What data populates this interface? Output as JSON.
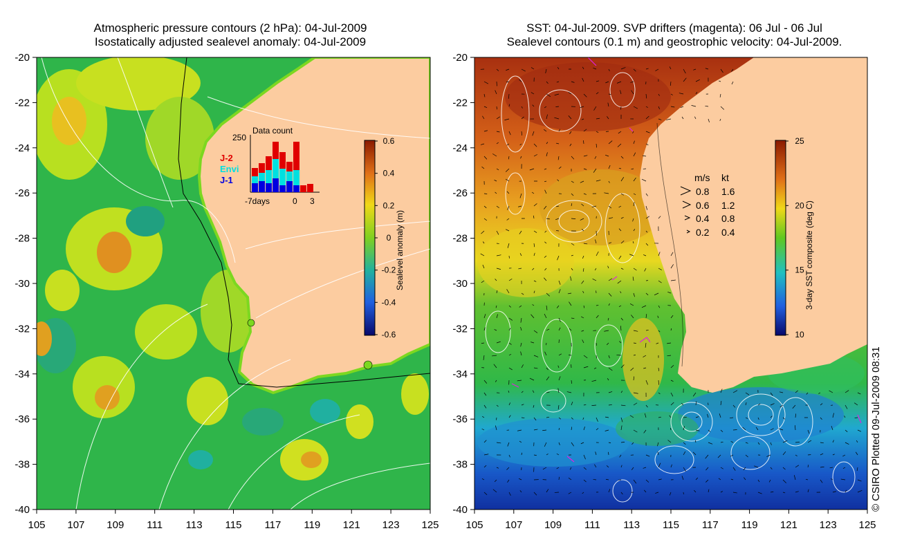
{
  "left_panel": {
    "title_line1": "Atmospheric pressure contours (2 hPa): 04-Jul-2009",
    "title_line2": "Isostatically adjusted sealevel anomaly: 04-Jul-2009",
    "x_ticks": [
      "105",
      "107",
      "109",
      "111",
      "113",
      "115",
      "117",
      "119",
      "121",
      "123",
      "125"
    ],
    "y_ticks": [
      "-20",
      "-22",
      "-24",
      "-26",
      "-28",
      "-30",
      "-32",
      "-34",
      "-36",
      "-38",
      "-40"
    ],
    "colorbar": {
      "label": "Sealevel anomaly (m)",
      "ticks": [
        "0.6",
        "0.4",
        "0.2",
        "0",
        "-0.2",
        "-0.4",
        "-0.6"
      ]
    },
    "inset": {
      "title": "Data count",
      "ymax_label": "250",
      "x_labels": [
        "-7days",
        "0",
        "3"
      ],
      "legend": [
        {
          "label": "J-2",
          "color": "#e00000"
        },
        {
          "label": "Envi",
          "color": "#00e0e0"
        },
        {
          "label": "J-1",
          "color": "#0000e0"
        }
      ]
    }
  },
  "right_panel": {
    "title_line1": "SST: 04-Jul-2009. SVP drifters (magenta): 06 Jul - 06 Jul",
    "title_line2": "Sealevel contours (0.1 m) and geostrophic velocity: 04-Jul-2009.",
    "x_ticks": [
      "105",
      "107",
      "109",
      "111",
      "113",
      "115",
      "117",
      "119",
      "121",
      "123",
      "125"
    ],
    "y_ticks": [
      "-20",
      "-22",
      "-24",
      "-26",
      "-28",
      "-30",
      "-32",
      "-34",
      "-36",
      "-38",
      "-40"
    ],
    "colorbar": {
      "label": "3-day SST composite (deg C)",
      "ticks": [
        "25",
        "20",
        "15",
        "10"
      ]
    },
    "velocity_legend": {
      "header_ms": "m/s",
      "header_kt": "kt",
      "rows": [
        {
          "ms": "0.8",
          "kt": "1.6"
        },
        {
          "ms": "0.6",
          "kt": "1.2"
        },
        {
          "ms": "0.4",
          "kt": "0.8"
        },
        {
          "ms": "0.2",
          "kt": "0.4"
        }
      ]
    }
  },
  "copyright": "© CSIRO Plotted 09-Jul-2009 08:31",
  "colors": {
    "land": "#fccca0",
    "sla_high": "#d08020",
    "sla_mid": "#b8e020",
    "sla_low": "#30b050",
    "sst_warm": "#b83c10",
    "sst_mid": "#e0d020",
    "sst_green": "#30b040",
    "sst_cool": "#20a0e0",
    "sst_cold": "#1040b0"
  }
}
